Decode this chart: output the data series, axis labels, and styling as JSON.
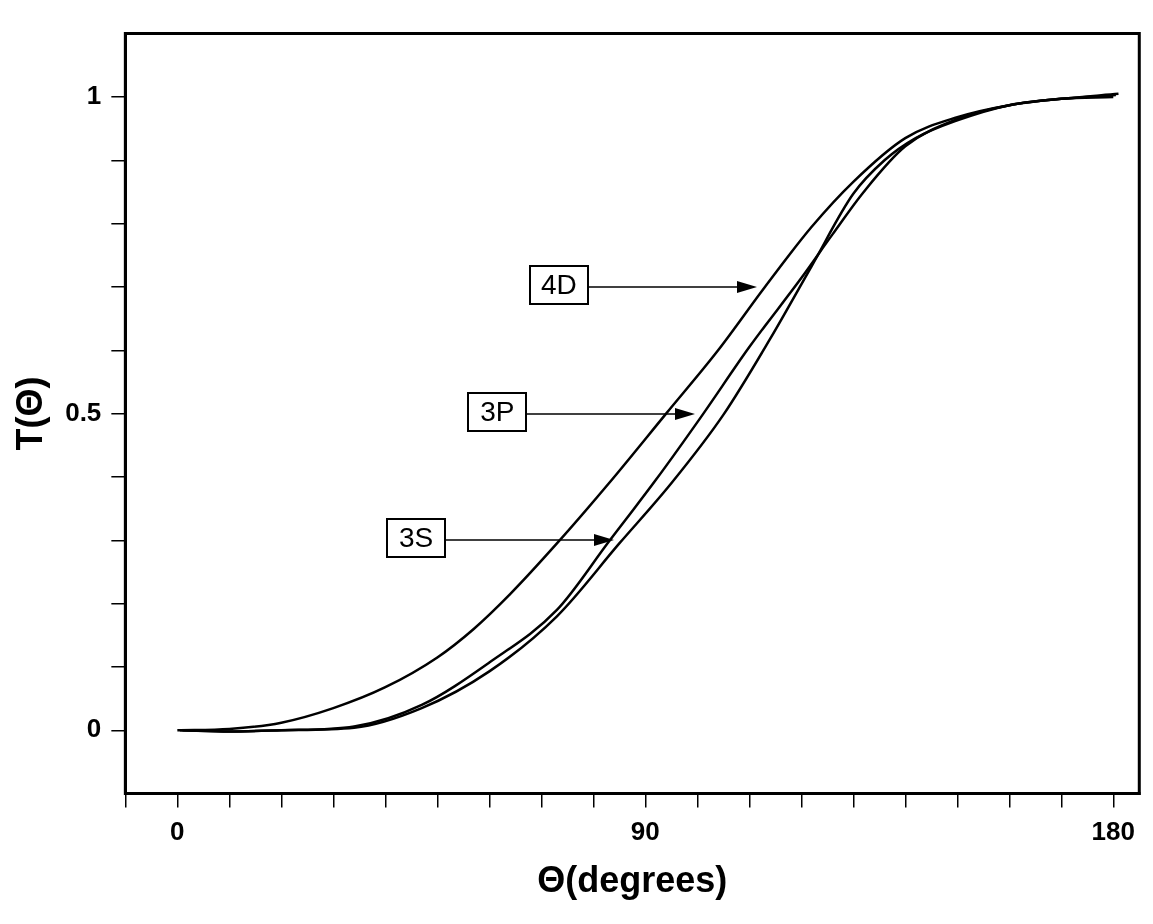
{
  "chart_data": {
    "type": "line",
    "xlabel": "Θ(degrees)",
    "ylabel": "T(Θ)",
    "xlim": [
      -10,
      185
    ],
    "ylim": [
      -0.1,
      1.1
    ],
    "xticks": [
      {
        "value": -10,
        "label": null
      },
      0,
      {
        "value": 10,
        "label": null
      },
      {
        "value": 20,
        "label": null
      },
      {
        "value": 30,
        "label": null
      },
      {
        "value": 40,
        "label": null
      },
      {
        "value": 50,
        "label": null
      },
      {
        "value": 60,
        "label": null
      },
      {
        "value": 70,
        "label": null
      },
      {
        "value": 80,
        "label": null
      },
      90,
      {
        "value": 100,
        "label": null
      },
      {
        "value": 110,
        "label": null
      },
      {
        "value": 120,
        "label": null
      },
      {
        "value": 130,
        "label": null
      },
      {
        "value": 140,
        "label": null
      },
      {
        "value": 150,
        "label": null
      },
      {
        "value": 160,
        "label": null
      },
      {
        "value": 170,
        "label": null
      },
      180
    ],
    "yticks": [
      0,
      {
        "value": 0.1,
        "label": null
      },
      {
        "value": 0.2,
        "label": null
      },
      {
        "value": 0.3,
        "label": null
      },
      {
        "value": 0.4,
        "label": null
      },
      0.5,
      {
        "value": 0.6,
        "label": null
      },
      {
        "value": 0.7,
        "label": null
      },
      {
        "value": 0.8,
        "label": null
      },
      {
        "value": 0.9,
        "label": null
      },
      1
    ],
    "grid": false,
    "legend": false,
    "marker": "none",
    "line_style": "solid",
    "series": [
      {
        "name": "4D",
        "color": "#000000",
        "x": [
          0,
          10,
          20,
          30,
          40,
          50,
          57,
          64,
          73,
          83,
          94,
          104,
          113,
          122,
          130,
          140,
          150,
          160,
          170,
          181
        ],
        "values": [
          0,
          0.002,
          0.012,
          0.035,
          0.068,
          0.115,
          0.16,
          0.215,
          0.295,
          0.39,
          0.5,
          0.6,
          0.7,
          0.795,
          0.866,
          0.935,
          0.968,
          0.987,
          0.997,
          1.005
        ]
      },
      {
        "name": "3P",
        "color": "#000000",
        "x": [
          0.5,
          10,
          20,
          34,
          47,
          60,
          73,
          83,
          92,
          101,
          110,
          120,
          126,
          132,
          140,
          150,
          160,
          170,
          180.5
        ],
        "values": [
          0,
          -0.002,
          0,
          0.006,
          0.04,
          0.107,
          0.19,
          0.298,
          0.395,
          0.498,
          0.605,
          0.714,
          0.783,
          0.85,
          0.922,
          0.965,
          0.987,
          0.997,
          1.003
        ]
      },
      {
        "name": "3S",
        "color": "#000000",
        "x": [
          1,
          10,
          20,
          34,
          47,
          60,
          73,
          85,
          95,
          105,
          114,
          122,
          130,
          136,
          142,
          150,
          160,
          170,
          180
        ],
        "values": [
          0,
          -0.002,
          0,
          0.004,
          0.035,
          0.093,
          0.18,
          0.295,
          0.39,
          0.498,
          0.618,
          0.733,
          0.847,
          0.9,
          0.935,
          0.963,
          0.987,
          0.997,
          1.0
        ]
      }
    ]
  }
}
